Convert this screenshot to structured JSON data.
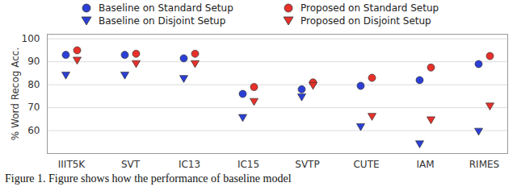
{
  "chart_data": {
    "type": "scatter",
    "caption": "Figure 1.   Figure shows how the performance of baseline model",
    "y_label": "% Word Recog Acc.",
    "categories": [
      "IIIT5K",
      "SVT",
      "IC13",
      "IC15",
      "SVTP",
      "CUTE",
      "IAM",
      "RIMES"
    ],
    "series": [
      {
        "name": "Baseline on Standard Setup",
        "color": "#2b3fd6",
        "marker": "circle",
        "values": [
          93,
          93,
          91.5,
          76,
          78,
          79.5,
          82,
          89
        ]
      },
      {
        "name": "Proposed on Standard Setup",
        "color": "#e8302a",
        "marker": "circle",
        "values": [
          95,
          93.5,
          93.5,
          79,
          81,
          83,
          87.5,
          92.5
        ]
      },
      {
        "name": "Baseline on Disjoint Setup",
        "color": "#2b3fd6",
        "marker": "triangle-down",
        "values": [
          84.5,
          84.5,
          83,
          66,
          75,
          62,
          54.5,
          60
        ]
      },
      {
        "name": "Proposed on Disjoint Setup",
        "color": "#e8302a",
        "marker": "triangle-down",
        "values": [
          91,
          89.5,
          89.5,
          73,
          80,
          66.5,
          65,
          71
        ]
      }
    ],
    "ylim": [
      50,
      102
    ],
    "yticks": [
      60,
      70,
      80,
      90,
      100
    ],
    "grid": true
  }
}
